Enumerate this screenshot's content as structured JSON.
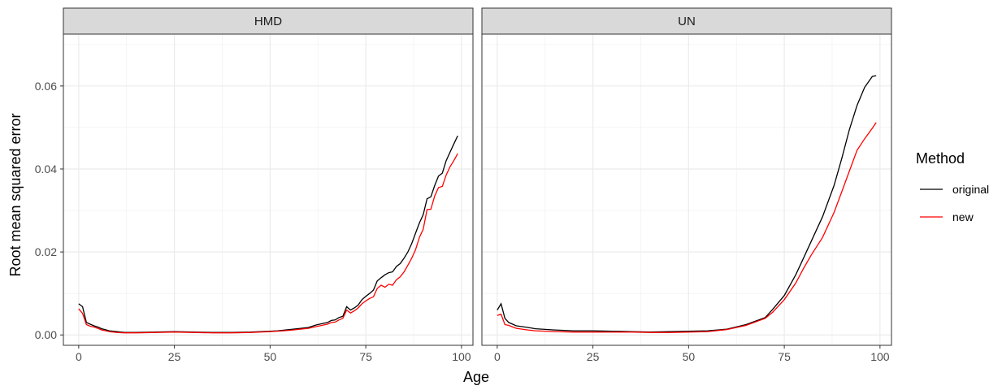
{
  "chart_data": {
    "type": "line",
    "xlabel": "Age",
    "ylabel": "Root mean squared error",
    "xlim": [
      -4,
      103
    ],
    "ylim": [
      -0.0025,
      0.0725
    ],
    "x_ticks": [
      0,
      25,
      50,
      75,
      100
    ],
    "x_tick_labels": [
      "0",
      "25",
      "50",
      "75",
      "100"
    ],
    "y_ticks": [
      0.0,
      0.02,
      0.04,
      0.06
    ],
    "y_tick_labels": [
      "0.00",
      "0.02",
      "0.04",
      "0.06"
    ],
    "grid": true,
    "legend": {
      "title": "Method",
      "placement": "right",
      "entries": [
        {
          "name": "original",
          "color": "#000000"
        },
        {
          "name": "new",
          "color": "#ff0000"
        }
      ]
    },
    "panels": [
      {
        "title": "HMD",
        "x": [
          0,
          1,
          2,
          3,
          4,
          5,
          6,
          8,
          10,
          12,
          15,
          20,
          25,
          30,
          35,
          40,
          45,
          50,
          52,
          55,
          58,
          60,
          62,
          64,
          65,
          66,
          67,
          68,
          69,
          70,
          71,
          72,
          73,
          74,
          75,
          76,
          77,
          78,
          79,
          80,
          81,
          82,
          83,
          84,
          85,
          86,
          87,
          88,
          89,
          90,
          91,
          92,
          93,
          94,
          95,
          96,
          97,
          98,
          99
        ],
        "series": [
          {
            "name": "original",
            "color": "#000000",
            "values": [
              0.0075,
              0.0068,
              0.003,
              0.0026,
              0.0022,
              0.0019,
              0.0015,
              0.001,
              0.0008,
              0.0006,
              0.0006,
              0.0007,
              0.0008,
              0.0007,
              0.0006,
              0.0006,
              0.0007,
              0.0009,
              0.001,
              0.0013,
              0.0016,
              0.0018,
              0.0024,
              0.0028,
              0.003,
              0.0035,
              0.0036,
              0.0042,
              0.0045,
              0.0068,
              0.006,
              0.0065,
              0.0072,
              0.0085,
              0.0093,
              0.01,
              0.0108,
              0.013,
              0.0138,
              0.0145,
              0.015,
              0.0152,
              0.0165,
              0.0172,
              0.0185,
              0.02,
              0.022,
              0.0245,
              0.027,
              0.029,
              0.0328,
              0.0333,
              0.036,
              0.0383,
              0.039,
              0.042,
              0.044,
              0.046,
              0.048
            ]
          },
          {
            "name": "new",
            "color": "#ff0000",
            "values": [
              0.0063,
              0.0052,
              0.0025,
              0.0021,
              0.0019,
              0.0016,
              0.0012,
              0.0008,
              0.0006,
              0.0005,
              0.0005,
              0.0006,
              0.0007,
              0.0006,
              0.0005,
              0.0005,
              0.0006,
              0.0008,
              0.0009,
              0.0011,
              0.0014,
              0.0016,
              0.002,
              0.0024,
              0.0026,
              0.003,
              0.0031,
              0.0036,
              0.004,
              0.006,
              0.0053,
              0.0058,
              0.0065,
              0.0075,
              0.0082,
              0.0088,
              0.0092,
              0.0112,
              0.012,
              0.0115,
              0.0122,
              0.012,
              0.0133,
              0.014,
              0.0152,
              0.0168,
              0.0185,
              0.0205,
              0.0235,
              0.0255,
              0.0302,
              0.0303,
              0.0335,
              0.0355,
              0.0358,
              0.0385,
              0.0405,
              0.042,
              0.0437
            ]
          }
        ]
      },
      {
        "title": "UN",
        "x": [
          0,
          1,
          2,
          3,
          5,
          8,
          10,
          15,
          20,
          25,
          30,
          35,
          40,
          45,
          50,
          55,
          60,
          65,
          70,
          72,
          75,
          78,
          80,
          82,
          85,
          88,
          90,
          92,
          94,
          96,
          98,
          99
        ],
        "series": [
          {
            "name": "original",
            "color": "#000000",
            "values": [
              0.006,
              0.0075,
              0.004,
              0.003,
              0.0022,
              0.0018,
              0.0015,
              0.0012,
              0.001,
              0.001,
              0.0009,
              0.0008,
              0.0007,
              0.0008,
              0.0009,
              0.001,
              0.0014,
              0.0025,
              0.0042,
              0.0062,
              0.0095,
              0.0145,
              0.0185,
              0.0225,
              0.0285,
              0.036,
              0.0425,
              0.0495,
              0.0553,
              0.0597,
              0.0623,
              0.0625
            ]
          },
          {
            "name": "new",
            "color": "#ff0000",
            "values": [
              0.0047,
              0.005,
              0.0025,
              0.0023,
              0.0016,
              0.0012,
              0.001,
              0.0008,
              0.0007,
              0.0007,
              0.0007,
              0.0007,
              0.0006,
              0.0006,
              0.0007,
              0.0008,
              0.0013,
              0.0023,
              0.004,
              0.0055,
              0.0085,
              0.0125,
              0.016,
              0.0192,
              0.0235,
              0.0295,
              0.0345,
              0.0395,
              0.0445,
              0.0473,
              0.0498,
              0.0512
            ]
          }
        ]
      }
    ]
  }
}
